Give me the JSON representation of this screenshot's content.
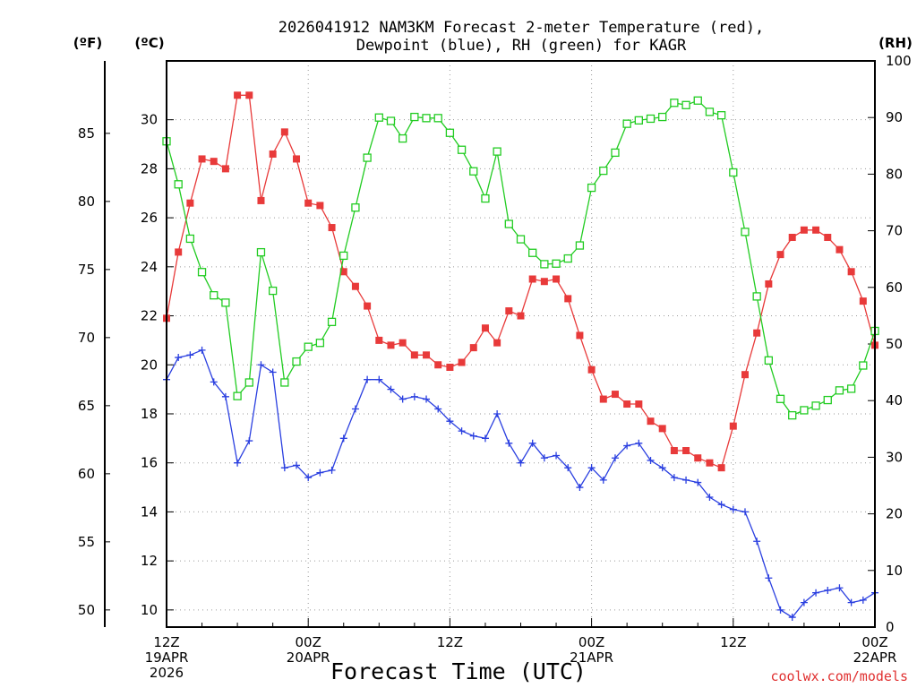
{
  "chart_data": {
    "type": "line",
    "title_line1": "2026041912 NAM3KM Forecast 2-meter Temperature (red),",
    "title_line2": "Dewpoint (blue), RH (green) for KAGR",
    "left_unit_f": "(ºF)",
    "left_unit_c": "(ºC)",
    "right_unit": "(RH)",
    "xlabel": "Forecast Time (UTC)",
    "credit": "coolwx.com/models",
    "x_ticks": [
      {
        "hour": 0,
        "lines": [
          "12Z",
          "19APR",
          "2026"
        ]
      },
      {
        "hour": 12,
        "lines": [
          "00Z",
          "20APR"
        ]
      },
      {
        "hour": 24,
        "lines": [
          "12Z"
        ]
      },
      {
        "hour": 36,
        "lines": [
          "00Z",
          "21APR"
        ]
      },
      {
        "hour": 48,
        "lines": [
          "12Z"
        ]
      },
      {
        "hour": 60,
        "lines": [
          "00Z",
          "22APR"
        ]
      }
    ],
    "xlim": [
      0,
      60
    ],
    "celsius_ylim": [
      9.3,
      32.4
    ],
    "celsius_ticks": [
      10,
      12,
      14,
      16,
      18,
      20,
      22,
      24,
      26,
      28,
      30
    ],
    "fahrenheit_ticks": [
      50,
      55,
      60,
      65,
      70,
      75,
      80,
      85
    ],
    "rh_ylim": [
      0,
      100
    ],
    "rh_ticks": [
      0,
      10,
      20,
      30,
      40,
      50,
      60,
      70,
      80,
      90,
      100
    ],
    "series": [
      {
        "name": "2-meter Temperature",
        "unit": "C",
        "axis": "celsius",
        "color": "#e83a3a",
        "marker": "filled-square",
        "values": [
          21.9,
          24.6,
          26.6,
          28.4,
          28.3,
          28.0,
          31.0,
          31.0,
          26.7,
          28.6,
          29.5,
          28.4,
          26.6,
          26.5,
          25.6,
          23.8,
          23.2,
          22.4,
          21.0,
          20.8,
          20.9,
          20.4,
          20.4,
          20.0,
          19.9,
          20.1,
          20.7,
          21.5,
          20.9,
          22.2,
          22.0,
          23.5,
          23.4,
          23.5,
          22.7,
          21.2,
          19.8,
          18.6,
          18.8,
          18.4,
          18.4,
          17.7,
          17.4,
          16.5,
          16.5,
          16.2,
          16.0,
          15.8,
          17.5,
          19.6,
          21.3,
          23.3,
          24.5,
          25.2,
          25.5,
          25.5,
          25.2,
          24.7,
          23.8,
          22.6,
          20.8
        ]
      },
      {
        "name": "Dewpoint",
        "unit": "C",
        "axis": "celsius",
        "color": "#2a3fe0",
        "marker": "plus",
        "values": [
          19.4,
          20.3,
          20.4,
          20.6,
          19.3,
          18.7,
          16.0,
          16.9,
          20.0,
          19.7,
          15.8,
          15.9,
          15.4,
          15.6,
          15.7,
          17.0,
          18.2,
          19.4,
          19.4,
          19.0,
          18.6,
          18.7,
          18.6,
          18.2,
          17.7,
          17.3,
          17.1,
          17.0,
          18.0,
          16.8,
          16.0,
          16.8,
          16.2,
          16.3,
          15.8,
          15.0,
          15.8,
          15.3,
          16.2,
          16.7,
          16.8,
          16.1,
          15.8,
          15.4,
          15.3,
          15.2,
          14.6,
          14.3,
          14.1,
          14.0,
          12.8,
          11.3,
          10.0,
          9.7,
          10.3,
          10.7,
          10.8,
          10.9,
          10.3,
          10.4,
          10.7
        ]
      },
      {
        "name": "RH",
        "unit": "%",
        "axis": "rh",
        "color": "#22cc22",
        "marker": "open-square",
        "values": [
          85.8,
          78.2,
          68.6,
          62.7,
          58.6,
          57.3,
          40.8,
          43.2,
          66.2,
          59.4,
          43.2,
          46.9,
          49.5,
          50.2,
          53.9,
          65.6,
          74.1,
          82.9,
          90.0,
          89.4,
          86.3,
          90.1,
          89.9,
          89.9,
          87.3,
          84.3,
          80.5,
          75.7,
          84.0,
          71.2,
          68.5,
          66.1,
          64.1,
          64.2,
          65.1,
          67.4,
          77.6,
          80.6,
          83.8,
          88.9,
          89.5,
          89.8,
          90.1,
          92.6,
          92.2,
          93.0,
          91.0,
          90.4,
          80.3,
          69.8,
          58.4,
          47.1,
          40.3,
          37.4,
          38.3,
          39.1,
          40.1,
          41.8,
          42.1,
          46.2,
          52.3
        ]
      }
    ]
  }
}
